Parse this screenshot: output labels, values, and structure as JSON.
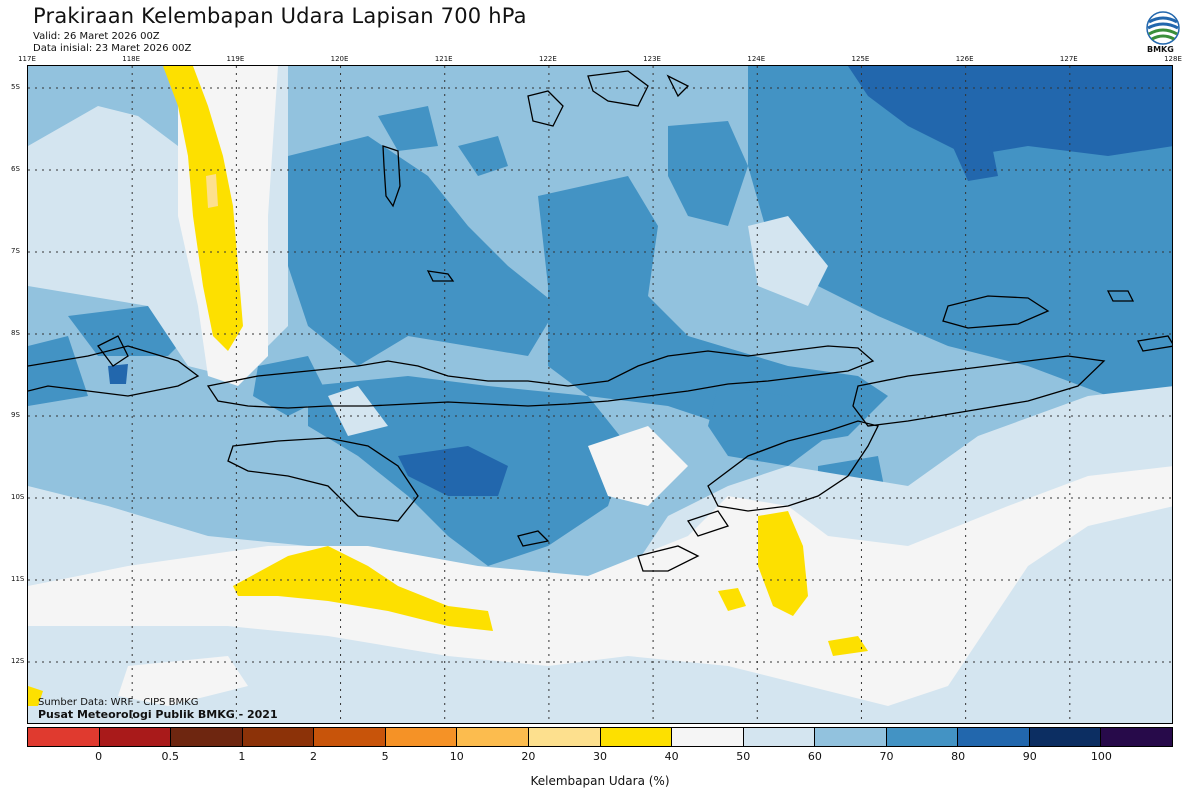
{
  "header": {
    "title": "Prakiraan Kelembapan Udara Lapisan 700 hPa",
    "valid": "Valid: 26 Maret 2026 00Z",
    "init": "Data inisial: 23 Maret 2026 00Z",
    "logo_text": "BMKG"
  },
  "axes": {
    "lon_labels": [
      "117E",
      "118E",
      "119E",
      "120E",
      "121E",
      "122E",
      "123E",
      "124E",
      "125E",
      "126E",
      "127E",
      "128E"
    ],
    "lat_labels": [
      "5S",
      "6S",
      "7S",
      "8S",
      "9S",
      "10S",
      "11S",
      "12S"
    ]
  },
  "footer": {
    "source": "Sumber Data: WRF - CIPS BMKG",
    "center": "Pusat Meteorologi Publik BMKG - 2021"
  },
  "legend": {
    "title": "Kelembapan Udara (%)",
    "ticks": [
      "0",
      "0.5",
      "1",
      "2",
      "5",
      "10",
      "20",
      "30",
      "40",
      "50",
      "60",
      "70",
      "80",
      "90",
      "100"
    ],
    "colors": [
      "#e03a2f",
      "#a91a1a",
      "#6e2610",
      "#8c3208",
      "#c8540a",
      "#f59226",
      "#fcbc4e",
      "#fde08e",
      "#fde000",
      "#f5f5f5",
      "#d4e5f0",
      "#92c2de",
      "#4393c4",
      "#2267ad",
      "#0c2e62",
      "#270a4a"
    ]
  },
  "map_colors": {
    "c40": "#fde000",
    "c30": "#fde08e",
    "c50": "#f5f5f5",
    "c60": "#d4e5f0",
    "c70": "#92c2de",
    "c80": "#4393c4",
    "c90": "#2267ad",
    "coast": "#000000",
    "grid": "#333333"
  }
}
